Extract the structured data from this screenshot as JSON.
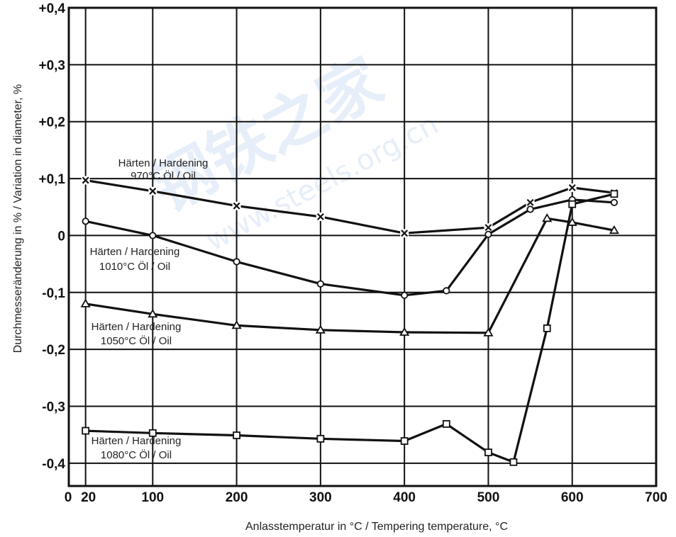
{
  "chart_data": {
    "type": "line",
    "xlabel": "Anlasstemperatur in °C / Tempering temperature, °C",
    "ylabel": "Durchmesseränderung in % / Variation in diameter, %",
    "xlim": [
      0,
      700
    ],
    "ylim": [
      -0.44,
      0.4
    ],
    "x_ticks": [
      {
        "value": 0,
        "label": "0"
      },
      {
        "value": 20,
        "label": "20"
      },
      {
        "value": 100,
        "label": "100"
      },
      {
        "value": 200,
        "label": "200"
      },
      {
        "value": 300,
        "label": "300"
      },
      {
        "value": 400,
        "label": "400"
      },
      {
        "value": 500,
        "label": "500"
      },
      {
        "value": 600,
        "label": "600"
      },
      {
        "value": 700,
        "label": "700"
      }
    ],
    "y_ticks": [
      {
        "value": 0.4,
        "label": "+0,4"
      },
      {
        "value": 0.3,
        "label": "+0,3"
      },
      {
        "value": 0.2,
        "label": "+0,2"
      },
      {
        "value": 0.1,
        "label": "+0,1"
      },
      {
        "value": 0,
        "label": "0"
      },
      {
        "value": -0.1,
        "label": "-0,1"
      },
      {
        "value": -0.2,
        "label": "-0,2"
      },
      {
        "value": -0.3,
        "label": "-0,3"
      },
      {
        "value": -0.4,
        "label": "-0,4"
      }
    ],
    "grid": true,
    "series": [
      {
        "marker": "x",
        "label_lines": [
          "Härten / Hardening",
          "970°C  Öl / Oil"
        ],
        "x": [
          20,
          100,
          200,
          300,
          400,
          500,
          550,
          600,
          650
        ],
        "y": [
          0.097,
          0.078,
          0.052,
          0.033,
          0.004,
          0.014,
          0.058,
          0.084,
          0.075
        ]
      },
      {
        "marker": "circle",
        "label_lines": [
          "Härten / Hardening",
          "1010°C  Öl / Oil"
        ],
        "x": [
          20,
          100,
          200,
          300,
          400,
          450,
          500,
          550,
          600,
          650
        ],
        "y": [
          0.025,
          0.0,
          -0.046,
          -0.085,
          -0.105,
          -0.097,
          0.002,
          0.046,
          0.063,
          0.058
        ]
      },
      {
        "marker": "triangle",
        "label_lines": [
          "Härten / Hardening",
          "1050°C  Öl / Oil"
        ],
        "x": [
          20,
          100,
          200,
          300,
          400,
          500,
          570,
          600,
          650
        ],
        "y": [
          -0.12,
          -0.138,
          -0.158,
          -0.166,
          -0.17,
          -0.171,
          0.03,
          0.023,
          0.009
        ]
      },
      {
        "marker": "square",
        "label_lines": [
          "Härten / Hardening",
          "1080°C  Öl / Oil"
        ],
        "x": [
          20,
          100,
          200,
          300,
          400,
          450,
          500,
          530,
          570,
          600,
          650
        ],
        "y": [
          -0.343,
          -0.347,
          -0.351,
          -0.357,
          -0.361,
          -0.331,
          -0.381,
          -0.398,
          -0.163,
          0.055,
          0.073
        ]
      }
    ],
    "watermark": "钢铁之家 www.steels.org.cn"
  }
}
